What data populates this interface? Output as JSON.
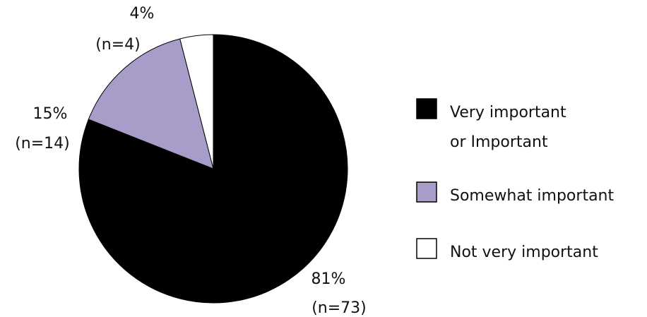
{
  "chart_data": {
    "type": "pie",
    "title": "",
    "start_angle_deg": 0,
    "direction": "clockwise",
    "slices": [
      {
        "key": "very_important",
        "legend_lines": [
          "Very important",
          "or Important"
        ],
        "value": 81,
        "n": 73,
        "percent_label": "81%",
        "n_label": "(n=73)",
        "color": "#000000"
      },
      {
        "key": "somewhat_important",
        "legend_lines": [
          "Somewhat important"
        ],
        "value": 15,
        "n": 14,
        "percent_label": "15%",
        "n_label": "(n=14)",
        "color": "#a89dc9"
      },
      {
        "key": "not_very_important",
        "legend_lines": [
          "Not very important"
        ],
        "value": 4,
        "n": 4,
        "percent_label": "4%",
        "n_label": "(n=4)",
        "color": "#ffffff"
      }
    ],
    "legend_position": "right"
  }
}
